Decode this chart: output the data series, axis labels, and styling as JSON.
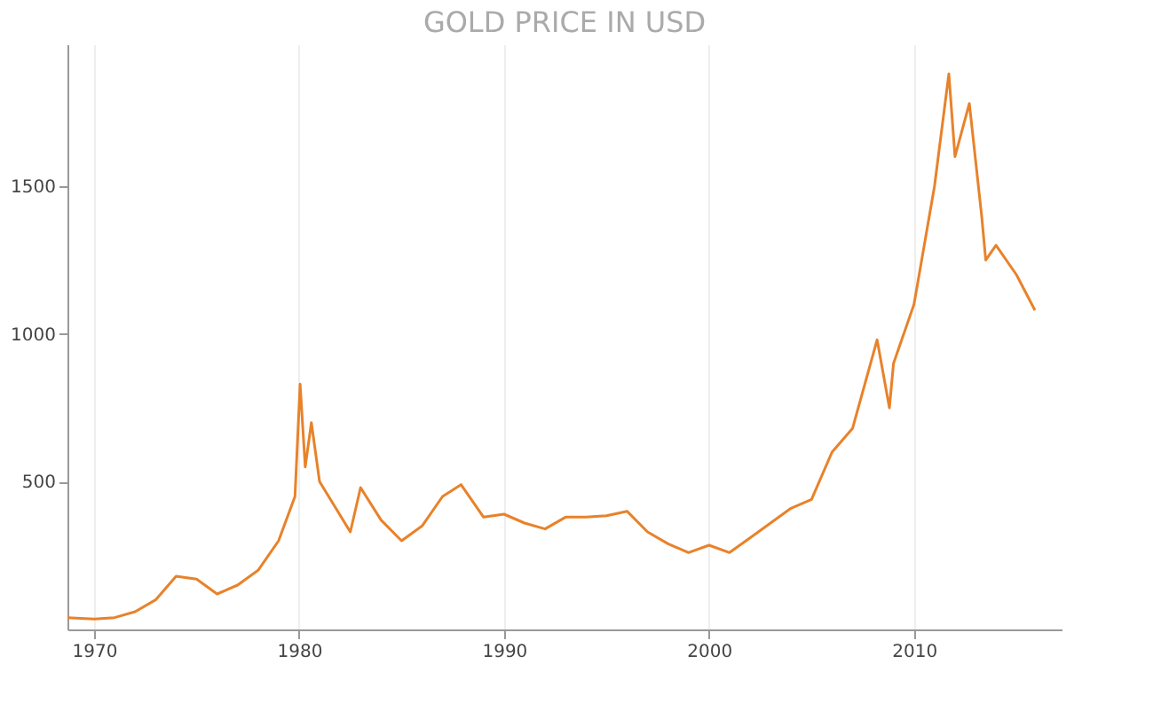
{
  "chart_data": {
    "type": "line",
    "title": "GOLD PRICE IN USD",
    "x": [
      1968.7,
      1970,
      1971,
      1972,
      1973,
      1974,
      1975,
      1976,
      1977,
      1978,
      1979,
      1979.8,
      1980.05,
      1980.3,
      1980.6,
      1981,
      1982.5,
      1983,
      1984,
      1985,
      1986,
      1987,
      1987.9,
      1988.5,
      1989,
      1990,
      1991,
      1992,
      1993,
      1994,
      1995,
      1996,
      1997,
      1998,
      1999,
      2000,
      2001,
      2002,
      2003,
      2004,
      2005,
      2006,
      2007,
      2008.2,
      2008.8,
      2009,
      2010,
      2011,
      2011.7,
      2012,
      2012.7,
      2013.3,
      2013.5,
      2014,
      2015,
      2015.9
    ],
    "series": [
      {
        "color": "#e8822a",
        "values": [
          40,
          35,
          40,
          60,
          100,
          180,
          170,
          120,
          150,
          200,
          300,
          450,
          830,
          550,
          700,
          500,
          330,
          480,
          370,
          300,
          350,
          450,
          490,
          430,
          380,
          390,
          360,
          340,
          380,
          380,
          385,
          400,
          330,
          290,
          260,
          285,
          260,
          310,
          360,
          410,
          440,
          600,
          680,
          980,
          750,
          900,
          1100,
          1500,
          1880,
          1600,
          1780,
          1400,
          1250,
          1300,
          1200,
          1080
        ]
      }
    ],
    "xlim": [
      1968.7,
      2017.2
    ],
    "xticks": [
      1970,
      1980,
      1990,
      2000,
      2010
    ],
    "ylim": [
      0,
      1980
    ],
    "yticks": [
      500,
      1000,
      1500
    ],
    "grid": "x",
    "legend": false,
    "marker": "none",
    "line_style": "solid"
  }
}
